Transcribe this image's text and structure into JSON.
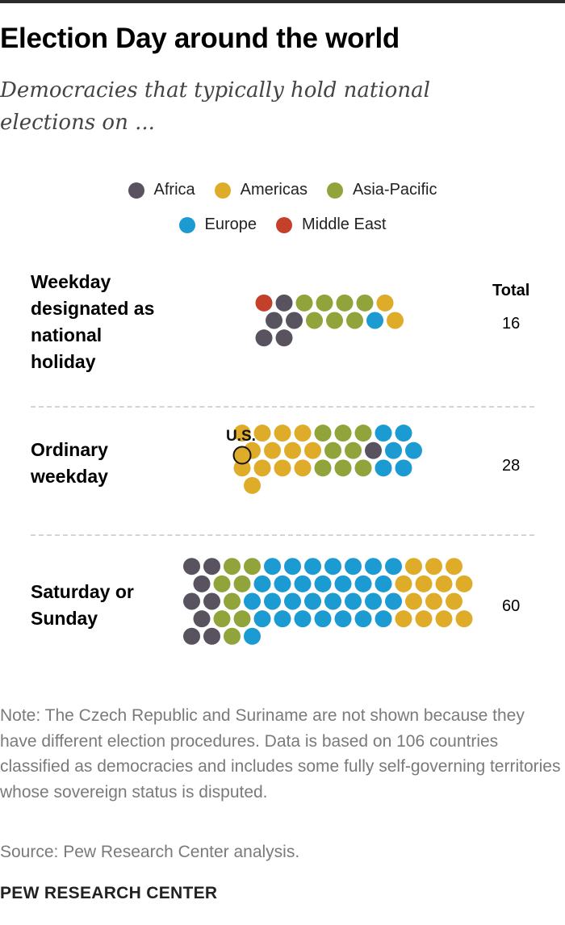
{
  "title": "Election Day around the world",
  "subtitle": "Democracies that typically hold national elections on ...",
  "legend": [
    {
      "label": "Africa",
      "color": "#58535f"
    },
    {
      "label": "Americas",
      "color": "#dfac2a"
    },
    {
      "label": "Asia-Pacific",
      "color": "#90a43b"
    },
    {
      "label": "Europe",
      "color": "#1c9ad2"
    },
    {
      "label": "Middle East",
      "color": "#c5402a"
    }
  ],
  "total_header": "Total",
  "chart_data": {
    "type": "beeswarm-dot",
    "unit": "one dot = one country",
    "categories": [
      "Weekday designated as national holiday",
      "Ordinary weekday",
      "Saturday or Sunday"
    ],
    "series": [
      {
        "name": "Africa",
        "values": [
          5,
          1,
          8
        ]
      },
      {
        "name": "Americas",
        "values": [
          2,
          13,
          14
        ]
      },
      {
        "name": "Asia-Pacific",
        "values": [
          7,
          8,
          8
        ]
      },
      {
        "name": "Europe",
        "values": [
          1,
          6,
          30
        ]
      },
      {
        "name": "Middle East",
        "values": [
          1,
          0,
          0
        ]
      }
    ],
    "totals": [
      16,
      28,
      60
    ],
    "annotations": [
      {
        "text": "U.S.",
        "category": "Ordinary weekday",
        "series": "Americas"
      }
    ]
  },
  "rows": [
    {
      "label": "Weekday designated as national holiday",
      "total": "16"
    },
    {
      "label": "Ordinary weekday",
      "total": "28"
    },
    {
      "label": "Saturday or Sunday",
      "total": "60"
    }
  ],
  "us_label": "U.S.",
  "note": "Note: The Czech Republic and Suriname are not shown because they have different election procedures. Data is based on 106 countries classified as democracies and includes some fully self-governing territories whose sovereign status is disputed.",
  "source": "Source: Pew Research Center analysis.",
  "organization": "PEW RESEARCH CENTER"
}
